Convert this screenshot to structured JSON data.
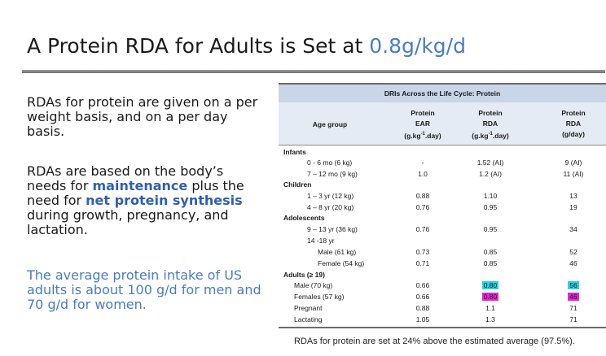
{
  "slide": {
    "title_prefix": "A Protein RDA for Adults is Set at ",
    "title_value": "0.8g/kg/d",
    "para1": "RDAs for protein are given on a per weight basis, and on a per day basis.",
    "para2_a": "RDAs are based on the body’s needs for ",
    "para2_hl1": "maintenance",
    "para2_b": " plus the need for ",
    "para2_hl2": "net protein synthesis",
    "para2_c": " during growth, pregnancy, and lactation.",
    "para3": "The average protein intake of US adults is about 100 g/d for men and 70 g/d for women.",
    "footnote": "RDAs for protein are set at 24% above the estimated average (97.5%)."
  },
  "table": {
    "title": "DRIs Across the Life Cycle: Protein",
    "headers": {
      "age": "Age group",
      "ear": [
        "Protein",
        "EAR",
        "(g.kg-1.day)"
      ],
      "rda": [
        "Protein",
        "RDA",
        "(g.kg-1.day)"
      ],
      "rda_day": [
        "Protein",
        "RDA",
        "(g/day)"
      ]
    },
    "rows": [
      {
        "label": "Infants",
        "group": true
      },
      {
        "label": "0 - 6 mo (6 kg)",
        "ear": "-",
        "rda": "1.52 (AI)",
        "day": "9 (AI)"
      },
      {
        "label": "7 – 12 mo (9 kg)",
        "ear": "1.0",
        "rda": "1.2 (AI)",
        "day": "11 (AI)"
      },
      {
        "label": "Children",
        "group": true
      },
      {
        "label": "1 – 3 yr (12 kg)",
        "ear": "0.88",
        "rda": "1.10",
        "day": "13"
      },
      {
        "label": "4 – 8 yr (20 kg)",
        "ear": "0.76",
        "rda": "0.95",
        "day": "19"
      },
      {
        "label": "Adolescents",
        "group": true
      },
      {
        "label": "9 – 13 yr (36 kg)",
        "ear": "0.76",
        "rda": "0.95",
        "day": "34"
      },
      {
        "label": "14 -18 yr",
        "ear": "",
        "rda": "",
        "day": ""
      },
      {
        "label": "Male (61 kg)",
        "ear": "0.73",
        "rda": "0.85",
        "day": "52"
      },
      {
        "label": "Female (54 kg)",
        "ear": "0.71",
        "rda": "0.85",
        "day": "46"
      },
      {
        "label": "Adults (≥ 19)",
        "group": true
      },
      {
        "label": "Male (70 kg)",
        "ear": "0.66",
        "rda": "0.80",
        "day": "56"
      },
      {
        "label": "Females (57 kg)",
        "ear": "0.66",
        "rda": "0.80",
        "day": "46"
      },
      {
        "label": "Pregnant",
        "ear": "0.88",
        "rda": "1.1",
        "day": "71"
      },
      {
        "label": "Lactating",
        "ear": "1.05",
        "rda": "1.3",
        "day": "71"
      }
    ],
    "highlight_colors": {
      "male": "#26d3e6",
      "female": "#e126d0"
    }
  }
}
